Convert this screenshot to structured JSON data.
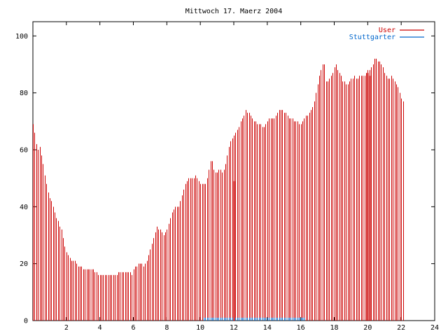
{
  "chart_data": {
    "type": "bar",
    "title": "Mittwoch 17. Maerz 2004",
    "xlabel": "",
    "ylabel": "",
    "xlim": [
      0,
      24
    ],
    "ylim": [
      0,
      105
    ],
    "x_ticks": [
      "2",
      "4",
      "6",
      "8",
      "10",
      "12",
      "14",
      "16",
      "18",
      "20",
      "22",
      "24"
    ],
    "y_ticks": [
      "0",
      "20",
      "40",
      "60",
      "80",
      "100"
    ],
    "grid": false,
    "legend_position": "top-right",
    "series": [
      {
        "name": "User",
        "color": "#cc0000",
        "style": "impulses",
        "x_step_hours": 0.1,
        "values": [
          69,
          66,
          62,
          60,
          61,
          58,
          55,
          51,
          48,
          45,
          43,
          42,
          40,
          38,
          36,
          35,
          33,
          32,
          29,
          26,
          24,
          23,
          22,
          21,
          21,
          21,
          20,
          19,
          19,
          19,
          18,
          18,
          18,
          18,
          18,
          18,
          18,
          17,
          17,
          16,
          16,
          16,
          16,
          16,
          16,
          16,
          16,
          16,
          16,
          16,
          16,
          17,
          17,
          17,
          17,
          17,
          17,
          17,
          17,
          16,
          18,
          19,
          19,
          20,
          20,
          20,
          19,
          20,
          21,
          23,
          25,
          27,
          29,
          31,
          33,
          32,
          32,
          31,
          30,
          31,
          32,
          34,
          36,
          38,
          39,
          40,
          40,
          40,
          42,
          44,
          46,
          48,
          49,
          50,
          50,
          50,
          50,
          51,
          50,
          49,
          48,
          48,
          48,
          48,
          50,
          53,
          56,
          56,
          53,
          52,
          52,
          53,
          53,
          52,
          53,
          55,
          58,
          61,
          63,
          64,
          65,
          66,
          67,
          68,
          70,
          71,
          72,
          74,
          73,
          73,
          72,
          71,
          70,
          70,
          69,
          69,
          69,
          68,
          68,
          69,
          70,
          71,
          71,
          71,
          71,
          72,
          73,
          74,
          74,
          74,
          73,
          73,
          72,
          71,
          71,
          71,
          70,
          70,
          70,
          69,
          69,
          70,
          71,
          72,
          72,
          73,
          74,
          75,
          77,
          80,
          83,
          86,
          88,
          90,
          90,
          84,
          84,
          85,
          86,
          87,
          89,
          90,
          88,
          87,
          86,
          84,
          84,
          83,
          83,
          84,
          85,
          85,
          86,
          85,
          85,
          86,
          86,
          86,
          86,
          87,
          88,
          88,
          89,
          90,
          92,
          92,
          91,
          91,
          90,
          89,
          87,
          86,
          85,
          85,
          86,
          85,
          84,
          83,
          82,
          80,
          78,
          77
        ]
      },
      {
        "name": "Stuttgarter",
        "color": "#0066cc",
        "style": "impulses",
        "x_start_hour": 10.2,
        "x_end_hour": 16.2,
        "value": 1
      }
    ],
    "spikes": [
      {
        "x": 12.0,
        "value": 49,
        "color": "#cc0000"
      },
      {
        "x": 20.0,
        "value": 87,
        "color": "#cc0000"
      },
      {
        "x": 20.1,
        "value": 86,
        "color": "#cc0000"
      }
    ]
  }
}
